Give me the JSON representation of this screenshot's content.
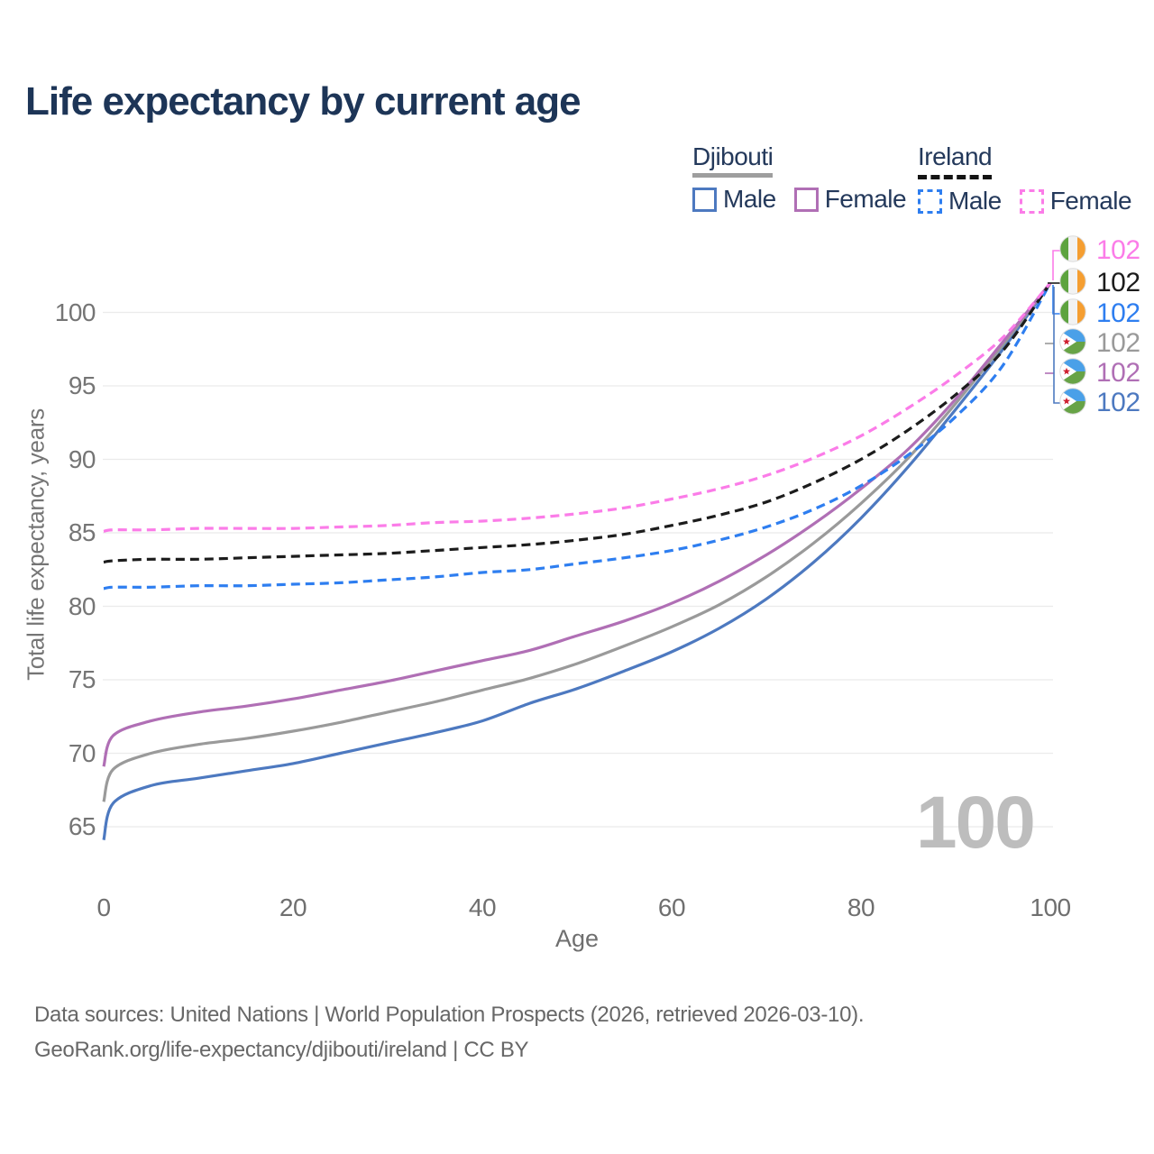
{
  "title": "Life expectancy by current age",
  "watermark_age": "100",
  "legend": {
    "groups": [
      {
        "country": "Djibouti",
        "line_style": "solid",
        "underline_color": "#9e9e9e",
        "items": [
          {
            "label": "Male",
            "color": "#4d79c0"
          },
          {
            "label": "Female",
            "color": "#b06fb5"
          }
        ]
      },
      {
        "country": "Ireland",
        "line_style": "dashed",
        "underline_color": "#141414",
        "items": [
          {
            "label": "Male",
            "color": "#2e7ef0"
          },
          {
            "label": "Female",
            "color": "#fb7ce8"
          }
        ]
      }
    ]
  },
  "end_labels": [
    {
      "series": "Ireland Female",
      "flag": "ireland",
      "value": "102",
      "color": "#fb7ce8"
    },
    {
      "series": "Ireland Both sexes",
      "flag": "ireland",
      "value": "102",
      "color": "#1c1c1c"
    },
    {
      "series": "Ireland Male",
      "flag": "ireland",
      "value": "102",
      "color": "#2e7ef0"
    },
    {
      "series": "Djibouti Both sexes",
      "flag": "djibouti",
      "value": "102",
      "color": "#9a9a9a"
    },
    {
      "series": "Djibouti Female",
      "flag": "djibouti",
      "value": "102",
      "color": "#b06fb5"
    },
    {
      "series": "Djibouti Male",
      "flag": "djibouti",
      "value": "102",
      "color": "#4d79c0"
    }
  ],
  "flag_colors": {
    "ireland": {
      "green": "#5da33f",
      "white": "#f2f2f2",
      "orange": "#f59e31"
    },
    "djibouti": {
      "blue": "#4aa0e8",
      "green": "#67a346",
      "white": "#ffffff",
      "red": "#cf2030"
    }
  },
  "footer": {
    "line1": "Data sources: United Nations | World Population Prospects (2026, retrieved 2026-03-10).",
    "line2": "GeoRank.org/life-expectancy/djibouti/ireland | CC BY"
  },
  "chart_data": {
    "type": "line",
    "title": "Life expectancy by current age",
    "xlabel": "Age",
    "ylabel": "Total life expectancy, years",
    "x_ticks": [
      0,
      20,
      40,
      60,
      80,
      100
    ],
    "y_ticks": [
      65,
      70,
      75,
      80,
      85,
      90,
      95,
      100
    ],
    "xlim": [
      0,
      100
    ],
    "ylim": [
      63.5,
      103
    ],
    "grid": "horizontal",
    "legend_position": "top-right",
    "ages": [
      0,
      1,
      5,
      10,
      15,
      20,
      25,
      30,
      35,
      40,
      45,
      50,
      55,
      60,
      65,
      70,
      75,
      80,
      85,
      90,
      95,
      100
    ],
    "series": [
      {
        "name": "Djibouti Male",
        "country": "Djibouti",
        "sex": "Male",
        "style": "solid",
        "color": "#4d79c0",
        "end_value": 102,
        "values": [
          64.1,
          66.6,
          67.8,
          68.3,
          68.8,
          69.3,
          70.0,
          70.7,
          71.4,
          72.2,
          73.4,
          74.4,
          75.6,
          76.9,
          78.5,
          80.5,
          83.0,
          86.0,
          89.5,
          93.4,
          97.5,
          102
        ]
      },
      {
        "name": "Djibouti Both sexes",
        "country": "Djibouti",
        "sex": "Both",
        "style": "solid",
        "color": "#9a9a9a",
        "end_value": 102,
        "values": [
          66.7,
          68.9,
          70.0,
          70.6,
          71.0,
          71.5,
          72.1,
          72.8,
          73.5,
          74.3,
          75.1,
          76.1,
          77.3,
          78.6,
          80.1,
          82.0,
          84.3,
          87.0,
          90.1,
          93.8,
          97.8,
          102
        ]
      },
      {
        "name": "Djibouti Female",
        "country": "Djibouti",
        "sex": "Female",
        "style": "solid",
        "color": "#b06fb5",
        "end_value": 102,
        "values": [
          69.1,
          71.2,
          72.2,
          72.8,
          73.2,
          73.7,
          74.3,
          74.9,
          75.6,
          76.3,
          77.0,
          78.0,
          79.0,
          80.2,
          81.7,
          83.5,
          85.6,
          88.0,
          90.7,
          94.1,
          98.0,
          102
        ]
      },
      {
        "name": "Ireland Male",
        "country": "Ireland",
        "sex": "Male",
        "style": "dashed",
        "color": "#2e7ef0",
        "end_value": 102,
        "values": [
          81.2,
          81.3,
          81.3,
          81.4,
          81.4,
          81.5,
          81.6,
          81.8,
          82.0,
          82.3,
          82.5,
          82.9,
          83.3,
          83.8,
          84.5,
          85.4,
          86.6,
          88.2,
          90.3,
          92.9,
          96.4,
          102
        ]
      },
      {
        "name": "Ireland Both sexes",
        "country": "Ireland",
        "sex": "Both",
        "style": "dashed",
        "color": "#1c1c1c",
        "end_value": 102,
        "values": [
          83.0,
          83.1,
          83.2,
          83.2,
          83.3,
          83.4,
          83.5,
          83.6,
          83.8,
          84.0,
          84.2,
          84.5,
          84.9,
          85.5,
          86.2,
          87.1,
          88.4,
          90.0,
          92.0,
          94.4,
          97.4,
          102
        ]
      },
      {
        "name": "Ireland Female",
        "country": "Ireland",
        "sex": "Female",
        "style": "dashed",
        "color": "#fb7ce8",
        "end_value": 102,
        "values": [
          85.1,
          85.2,
          85.2,
          85.3,
          85.3,
          85.3,
          85.4,
          85.5,
          85.7,
          85.8,
          86.0,
          86.3,
          86.7,
          87.3,
          88.0,
          88.9,
          90.1,
          91.6,
          93.5,
          95.7,
          98.3,
          102
        ]
      }
    ]
  }
}
